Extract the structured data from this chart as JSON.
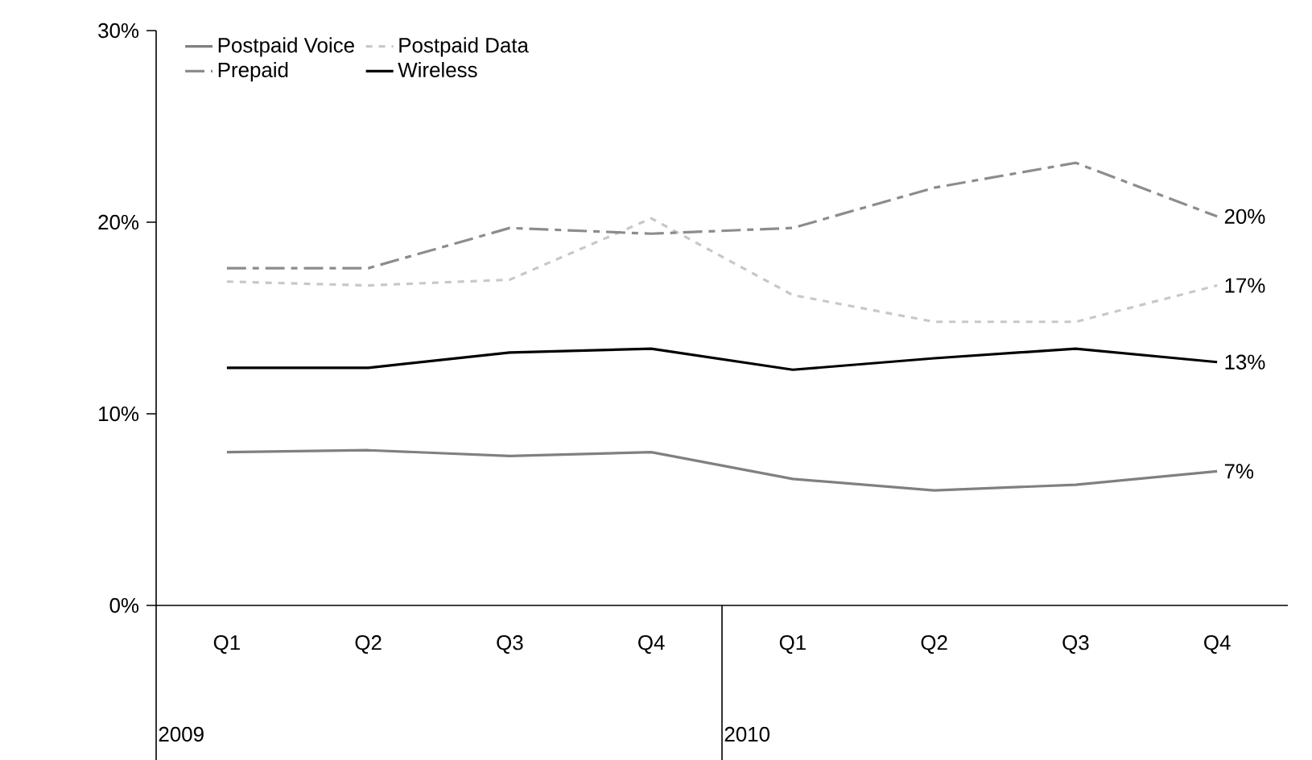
{
  "chart_data": {
    "type": "line",
    "categories": [
      "Q1",
      "Q2",
      "Q3",
      "Q4",
      "Q1",
      "Q2",
      "Q3",
      "Q4"
    ],
    "series": [
      {
        "name": "Postpaid Voice",
        "color": "#808080",
        "line_style": "solid",
        "values": [
          8.0,
          8.1,
          7.8,
          8.0,
          6.6,
          6.0,
          6.3,
          7.0
        ],
        "value_labels": [
          null,
          null,
          null,
          null,
          null,
          null,
          null,
          "7%"
        ]
      },
      {
        "name": "Postpaid Data",
        "color": "#c8c8c8",
        "line_style": "dotted",
        "values": [
          16.9,
          16.7,
          17.0,
          20.2,
          16.2,
          14.8,
          14.8,
          16.7
        ],
        "value_labels": [
          null,
          null,
          null,
          null,
          null,
          null,
          null,
          "17%"
        ]
      },
      {
        "name": "Prepaid",
        "color": "#8c8c8c",
        "line_style": "dashed",
        "values": [
          17.6,
          17.6,
          19.7,
          19.4,
          19.7,
          21.8,
          23.1,
          20.3
        ],
        "value_labels": [
          null,
          null,
          null,
          null,
          null,
          null,
          null,
          "20%"
        ]
      },
      {
        "name": "Wireless",
        "color": "#000000",
        "line_style": "solid",
        "values": [
          12.4,
          12.4,
          13.2,
          13.4,
          12.3,
          12.9,
          13.4,
          12.7
        ],
        "value_labels": [
          null,
          null,
          null,
          null,
          null,
          null,
          null,
          "13%"
        ]
      }
    ],
    "ylim": [
      0,
      30
    ],
    "yticks": [
      {
        "value": 0,
        "label": "0%"
      },
      {
        "value": 10,
        "label": "10%"
      },
      {
        "value": 20,
        "label": "20%"
      },
      {
        "value": 30,
        "label": "30%"
      }
    ],
    "annotations": [
      "2009",
      "2010"
    ],
    "grid": false,
    "legend": "top left",
    "marker": "none"
  }
}
